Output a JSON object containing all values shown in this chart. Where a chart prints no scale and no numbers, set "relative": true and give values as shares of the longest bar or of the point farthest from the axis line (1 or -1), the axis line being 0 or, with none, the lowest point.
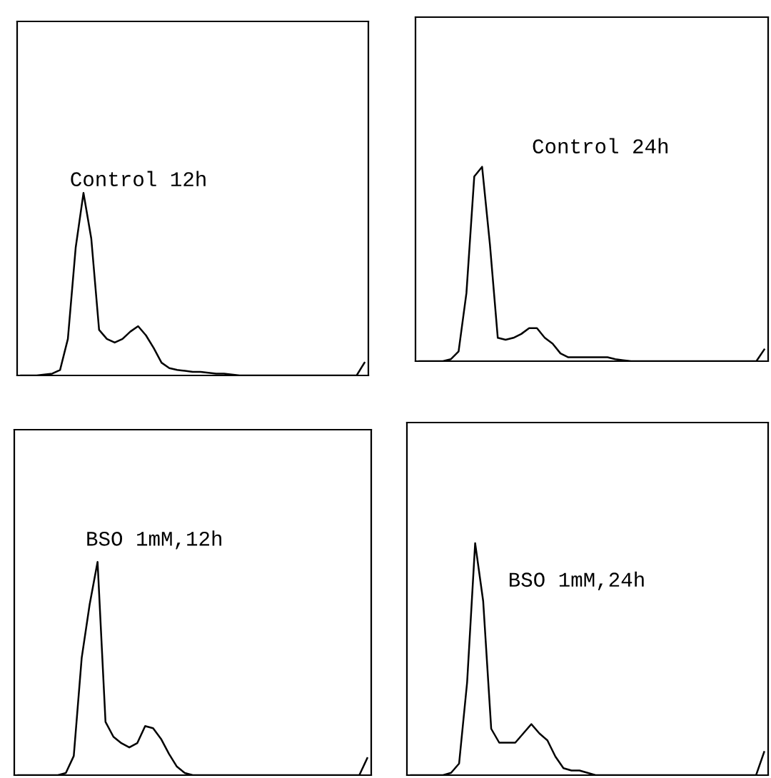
{
  "chart_data": [
    {
      "type": "line",
      "title": "Control 12h",
      "relative": true,
      "color": "#000000",
      "categories": [
        null,
        null,
        null,
        null,
        null,
        null,
        null,
        null,
        null,
        null,
        null,
        null,
        null,
        null,
        null,
        null,
        null,
        null,
        null,
        null,
        null,
        null,
        null,
        null,
        null,
        null,
        null,
        null,
        null,
        null,
        null,
        null,
        null,
        null,
        null,
        null,
        null,
        null,
        null,
        null,
        null,
        null,
        null,
        null,
        null
      ],
      "values": [
        0,
        0,
        0,
        0.005,
        0.01,
        0.03,
        0.2,
        0.7,
        1.0,
        0.75,
        0.25,
        0.2,
        0.18,
        0.2,
        0.24,
        0.27,
        0.22,
        0.15,
        0.07,
        0.04,
        0.03,
        0.025,
        0.02,
        0.02,
        0.015,
        0.01,
        0.01,
        0.005,
        0,
        0,
        0,
        0,
        0,
        0,
        0,
        0,
        0,
        0,
        0,
        0,
        0,
        0,
        0,
        0,
        0.07
      ]
    },
    {
      "type": "line",
      "title": "Control 24h",
      "relative": true,
      "color": "#000000",
      "categories": [
        null,
        null,
        null,
        null,
        null,
        null,
        null,
        null,
        null,
        null,
        null,
        null,
        null,
        null,
        null,
        null,
        null,
        null,
        null,
        null,
        null,
        null,
        null,
        null,
        null,
        null,
        null,
        null,
        null,
        null,
        null,
        null,
        null,
        null,
        null,
        null,
        null,
        null,
        null,
        null,
        null,
        null,
        null,
        null,
        null
      ],
      "values": [
        0,
        0,
        0,
        0,
        0.01,
        0.05,
        0.35,
        0.95,
        1.0,
        0.6,
        0.12,
        0.11,
        0.12,
        0.14,
        0.17,
        0.17,
        0.12,
        0.09,
        0.04,
        0.02,
        0.02,
        0.02,
        0.02,
        0.02,
        0.02,
        0.01,
        0.005,
        0,
        0,
        0,
        0,
        0,
        0,
        0,
        0,
        0,
        0,
        0,
        0,
        0,
        0,
        0,
        0,
        0,
        0.06
      ]
    },
    {
      "type": "line",
      "title": "BSO 1mM,12h",
      "relative": true,
      "color": "#000000",
      "categories": [
        null,
        null,
        null,
        null,
        null,
        null,
        null,
        null,
        null,
        null,
        null,
        null,
        null,
        null,
        null,
        null,
        null,
        null,
        null,
        null,
        null,
        null,
        null,
        null,
        null,
        null,
        null,
        null,
        null,
        null,
        null,
        null,
        null,
        null,
        null,
        null,
        null,
        null,
        null,
        null,
        null,
        null,
        null,
        null,
        null
      ],
      "values": [
        0,
        0,
        0,
        0,
        0,
        0,
        0.01,
        0.09,
        0.55,
        0.8,
        1.0,
        0.25,
        0.18,
        0.15,
        0.13,
        0.15,
        0.23,
        0.22,
        0.17,
        0.1,
        0.04,
        0.01,
        0,
        0,
        0,
        0,
        0,
        0,
        0,
        0,
        0,
        0,
        0,
        0,
        0,
        0,
        0,
        0,
        0,
        0,
        0,
        0,
        0,
        0,
        0.08
      ]
    },
    {
      "type": "line",
      "title": "BSO 1mM,24h",
      "relative": true,
      "color": "#000000",
      "categories": [
        null,
        null,
        null,
        null,
        null,
        null,
        null,
        null,
        null,
        null,
        null,
        null,
        null,
        null,
        null,
        null,
        null,
        null,
        null,
        null,
        null,
        null,
        null,
        null,
        null,
        null,
        null,
        null,
        null,
        null,
        null,
        null,
        null,
        null,
        null,
        null,
        null,
        null,
        null,
        null,
        null,
        null,
        null,
        null,
        null
      ],
      "values": [
        0,
        0,
        0,
        0,
        0,
        0.01,
        0.05,
        0.4,
        1.0,
        0.75,
        0.2,
        0.14,
        0.14,
        0.14,
        0.18,
        0.22,
        0.18,
        0.15,
        0.08,
        0.03,
        0.02,
        0.02,
        0.01,
        0,
        0,
        0,
        0,
        0,
        0,
        0,
        0,
        0,
        0,
        0,
        0,
        0,
        0,
        0,
        0,
        0,
        0,
        0,
        0,
        0,
        0.1
      ]
    }
  ]
}
